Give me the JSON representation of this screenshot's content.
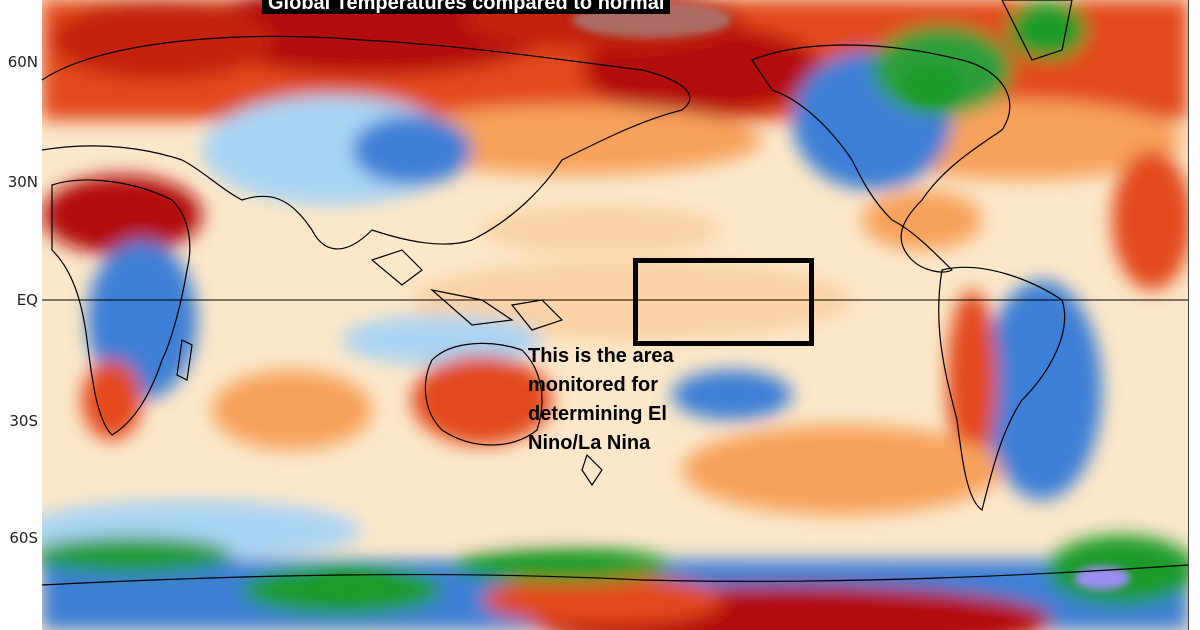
{
  "map": {
    "title": "Global Temperatures compared to normal",
    "latitude_labels": [
      "60N",
      "30N",
      "EQ",
      "30S",
      "60S"
    ],
    "annotation": "This is the area monitored for determining El Nino/La Nina",
    "colors": {
      "much_warmer": "#b40d0b",
      "warmer": "#e34a1f",
      "slightly_warmer": "#f7a25b",
      "near_normal_warm": "#fbe7c9",
      "near_normal": "#ffffff",
      "slightly_cooler": "#a9d4f4",
      "cooler": "#3e7fd6",
      "much_cooler": "#1c9b2b",
      "coldest": "#9c8cf2",
      "land_outline": "#000000"
    }
  }
}
